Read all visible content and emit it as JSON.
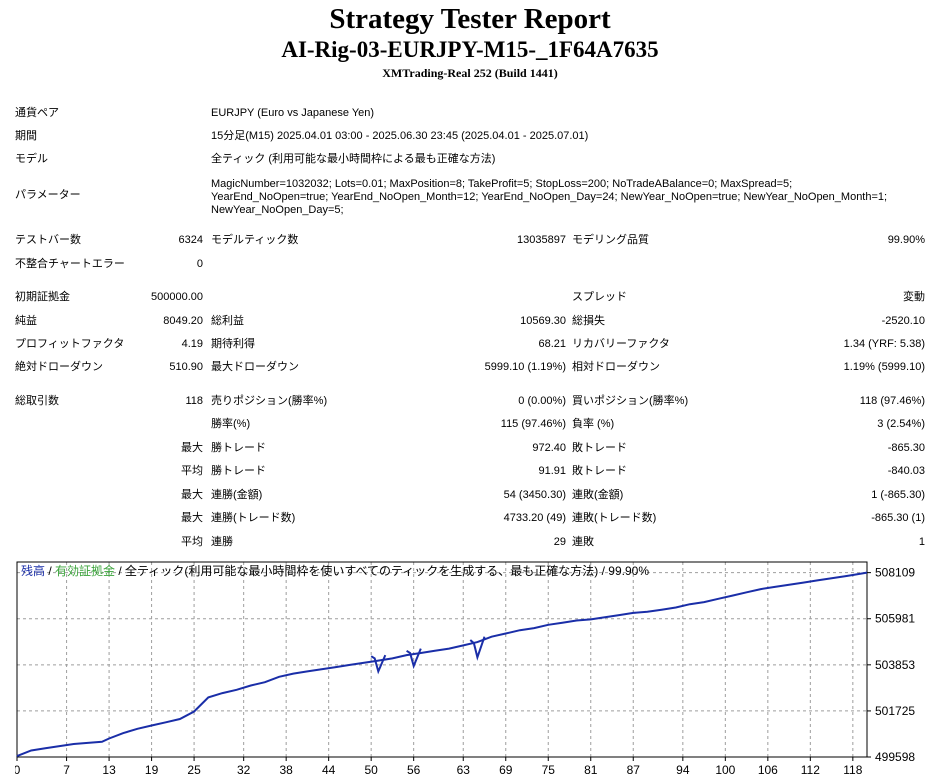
{
  "header": {
    "title": "Strategy Tester Report",
    "subtitle": "AI-Rig-03-EURJPY-M15-_1F64A7635",
    "server": "XMTrading-Real 252 (Build 1441)"
  },
  "info": {
    "symbol_label": "通貨ペア",
    "symbol": "EURJPY (Euro vs Japanese Yen)",
    "period_label": "期間",
    "period": "15分足(M15) 2025.04.01 03:00 - 2025.06.30 23:45 (2025.04.01 - 2025.07.01)",
    "model_label": "モデル",
    "model": "全ティック (利用可能な最小時間枠による最も正確な方法)",
    "params_label": "パラメーター",
    "params": "MagicNumber=1032032; Lots=0.01; MaxPosition=8; TakeProfit=5; StopLoss=200; NoTradeABalance=0; MaxSpread=5; YearEnd_NoOpen=true; YearEnd_NoOpen_Month=12; YearEnd_NoOpen_Day=24; NewYear_NoOpen=true; NewYear_NoOpen_Month=1; NewYear_NoOpen_Day=5;"
  },
  "stats": {
    "bars_label": "テストバー数",
    "bars": "6324",
    "ticks_label": "モデルティック数",
    "ticks": "13035897",
    "quality_label": "モデリング品質",
    "quality": "99.90%",
    "mismatch_label": "不整合チャートエラー",
    "mismatch": "0",
    "deposit_label": "初期証拠金",
    "deposit": "500000.00",
    "spread_label": "スプレッド",
    "spread": "変動",
    "net_label": "純益",
    "net": "8049.20",
    "gross_profit_label": "総利益",
    "gross_profit": "10569.30",
    "gross_loss_label": "総損失",
    "gross_loss": "-2520.10",
    "pf_label": "プロフィットファクタ",
    "pf": "4.19",
    "payoff_label": "期待利得",
    "payoff": "68.21",
    "recovery_label": "リカバリーファクタ",
    "recovery": "1.34 (YRF: 5.38)",
    "abs_dd_label": "絶対ドローダウン",
    "abs_dd": "510.90",
    "max_dd_label": "最大ドローダウン",
    "max_dd": "5999.10 (1.19%)",
    "rel_dd_label": "相対ドローダウン",
    "rel_dd": "1.19% (5999.10)",
    "total_trades_label": "総取引数",
    "total_trades": "118",
    "short_label": "売りポジション(勝率%)",
    "short": "0 (0.00%)",
    "long_label": "買いポジション(勝率%)",
    "long": "118 (97.46%)",
    "win_rate_label": "勝率(%)",
    "win_rate": "115 (97.46%)",
    "loss_rate_label": "負率 (%)",
    "loss_rate": "3 (2.54%)",
    "max_label": "最大",
    "avg_label": "平均",
    "largest_win_label": "勝トレード",
    "largest_win": "972.40",
    "largest_loss_label": "敗トレード",
    "largest_loss": "-865.30",
    "avg_win_label": "勝トレード",
    "avg_win": "91.91",
    "avg_loss_label": "敗トレード",
    "avg_loss": "-840.03",
    "max_consec_wins_label": "連勝(金額)",
    "max_consec_wins": "54 (3450.30)",
    "max_consec_losses_label": "連敗(金額)",
    "max_consec_losses": "1 (-865.30)",
    "max_consec_profit_label": "連勝(トレード数)",
    "max_consec_profit": "4733.20 (49)",
    "max_consec_loss_label": "連敗(トレード数)",
    "max_consec_loss": "-865.30 (1)",
    "avg_consec_wins_label": "連勝",
    "avg_consec_wins": "29",
    "avg_consec_losses_label": "連敗",
    "avg_consec_losses": "1"
  },
  "chart_legend": {
    "balance": "残高",
    "sep1": " / ",
    "equity": "有効証拠金",
    "rest": " / 全ティック(利用可能な最小時間枠を使いすべてのティックを生成する、最も正確な方法) / 99.90%"
  },
  "colors": {
    "balance": "#1a2ea8",
    "equity": "#3aa33a",
    "grid": "#9e9e9e"
  },
  "chart_data": {
    "type": "line",
    "xlim": [
      0,
      120
    ],
    "ylim": [
      499598,
      508600
    ],
    "xticks": [
      0,
      7,
      13,
      19,
      25,
      32,
      38,
      44,
      50,
      56,
      63,
      69,
      75,
      81,
      87,
      94,
      100,
      106,
      112,
      118
    ],
    "yticks": [
      508109,
      505981,
      503853,
      501725,
      499598
    ],
    "series": [
      {
        "name": "残高",
        "x": [
          0,
          2,
          4,
          6,
          8,
          10,
          12,
          13,
          15,
          17,
          19,
          21,
          23,
          25,
          27,
          29,
          31,
          33,
          35,
          37,
          39,
          41,
          43,
          45,
          47,
          49,
          51,
          53,
          55,
          57,
          59,
          61,
          63,
          65,
          67,
          69,
          71,
          73,
          75,
          77,
          79,
          81,
          83,
          85,
          87,
          89,
          91,
          93,
          95,
          97,
          99,
          101,
          103,
          105,
          107,
          109,
          111,
          113,
          115,
          117,
          118,
          120
        ],
        "y": [
          499640,
          499900,
          500000,
          500100,
          500200,
          500250,
          500300,
          500450,
          500700,
          500900,
          501050,
          501200,
          501350,
          501700,
          502350,
          502550,
          502700,
          502900,
          503050,
          503300,
          503450,
          503550,
          503650,
          503750,
          503850,
          503950,
          504050,
          504150,
          504300,
          504400,
          504500,
          504600,
          504750,
          504900,
          505150,
          505300,
          505450,
          505550,
          505700,
          505800,
          505900,
          505950,
          506050,
          506150,
          506250,
          506300,
          506400,
          506500,
          506650,
          506750,
          506900,
          507050,
          507200,
          507350,
          507450,
          507550,
          507650,
          507750,
          507850,
          507950,
          508000,
          508109
        ]
      },
      {
        "name": "有効証拠金",
        "x": [
          50,
          50.5,
          51,
          52,
          55,
          55.5,
          56,
          57,
          64,
          64.5,
          65,
          66
        ],
        "y": [
          504250,
          504150,
          503550,
          504300,
          504500,
          504400,
          503800,
          504600,
          505000,
          504850,
          504200,
          505150
        ]
      }
    ]
  }
}
